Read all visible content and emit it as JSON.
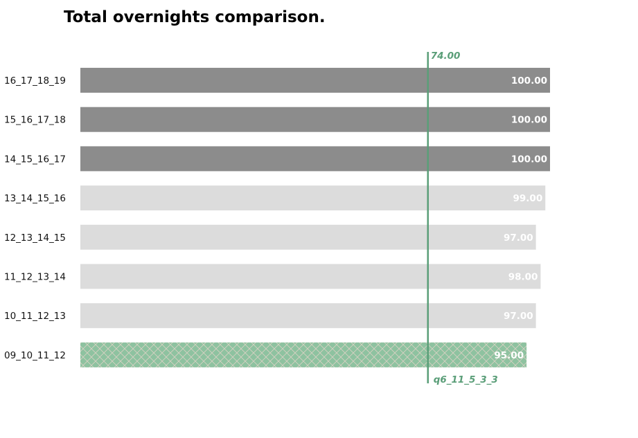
{
  "chart_data": {
    "type": "bar",
    "orientation": "horizontal",
    "title": "Total overnights comparison.",
    "categories": [
      "16_17_18_19",
      "15_16_17_18",
      "14_15_16_17",
      "13_14_15_16",
      "12_13_14_15",
      "11_12_13_14",
      "10_11_12_13",
      "09_10_11_12"
    ],
    "values": [
      100.0,
      100.0,
      100.0,
      99.0,
      97.0,
      98.0,
      97.0,
      95.0
    ],
    "value_labels": [
      "100.00",
      "100.00",
      "100.00",
      "99.00",
      "97.00",
      "98.00",
      "97.00",
      "95.00"
    ],
    "bar_styles": [
      "dark",
      "dark",
      "dark",
      "light",
      "light",
      "light",
      "light",
      "highlight"
    ],
    "xlim": [
      0,
      100
    ],
    "grid": false,
    "reference_line": {
      "value": 74,
      "top_label": "74.00",
      "bottom_label": "q6_11_5_3_3"
    },
    "colors": {
      "dark": "#8c8c8c",
      "light": "#dcdcdc",
      "highlight": "#8ec2a0",
      "hatch": "#d9d2c4",
      "reference": "#5a9e78",
      "value_text": "#ffffff"
    }
  }
}
